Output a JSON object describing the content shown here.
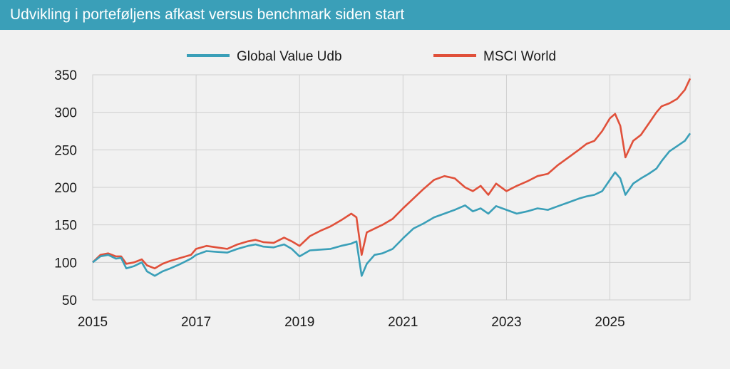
{
  "header": {
    "title": "Udvikling i porteføljens afkast versus benchmark siden start"
  },
  "colors": {
    "header_bg": "#3a9fb8",
    "fund": "#3a9fb8",
    "benchmark": "#e0503a",
    "grid": "#d0d0d0"
  },
  "chart_data": {
    "type": "line",
    "title": "Udvikling i porteføljens afkast versus benchmark siden start",
    "xlabel": "",
    "ylabel": "",
    "xlim": [
      2015.0,
      2026.55
    ],
    "ylim": [
      50,
      350
    ],
    "yticks": [
      50,
      100,
      150,
      200,
      250,
      300,
      350
    ],
    "xticks": [
      2015,
      2017,
      2019,
      2021,
      2023,
      2025
    ],
    "xtick_labels": [
      "2015",
      "2017",
      "2019",
      "2021",
      "2023",
      "2025"
    ],
    "ytick_labels": [
      "50",
      "100",
      "150",
      "200",
      "250",
      "300",
      "350"
    ],
    "grid": true,
    "legend_position": "top-center",
    "series": [
      {
        "name": "Global Value Udb",
        "color": "#3a9fb8",
        "x": [
          2015.0,
          2015.15,
          2015.3,
          2015.45,
          2015.55,
          2015.65,
          2015.8,
          2015.95,
          2016.05,
          2016.2,
          2016.35,
          2016.5,
          2016.7,
          2016.9,
          2017.0,
          2017.2,
          2017.4,
          2017.6,
          2017.8,
          2018.0,
          2018.15,
          2018.3,
          2018.5,
          2018.7,
          2018.85,
          2019.0,
          2019.2,
          2019.4,
          2019.6,
          2019.8,
          2020.0,
          2020.1,
          2020.2,
          2020.3,
          2020.45,
          2020.6,
          2020.8,
          2021.0,
          2021.2,
          2021.4,
          2021.6,
          2021.8,
          2022.0,
          2022.2,
          2022.35,
          2022.5,
          2022.65,
          2022.8,
          2023.0,
          2023.2,
          2023.4,
          2023.6,
          2023.8,
          2024.0,
          2024.2,
          2024.4,
          2024.55,
          2024.7,
          2024.85,
          2025.0,
          2025.1,
          2025.2,
          2025.3,
          2025.45,
          2025.6,
          2025.75,
          2025.9,
          2026.0,
          2026.15,
          2026.3,
          2026.45,
          2026.55
        ],
        "values": [
          100,
          108,
          110,
          105,
          106,
          92,
          95,
          100,
          88,
          82,
          88,
          92,
          98,
          105,
          110,
          115,
          114,
          113,
          118,
          122,
          124,
          121,
          120,
          124,
          118,
          108,
          116,
          117,
          118,
          122,
          125,
          128,
          82,
          98,
          110,
          112,
          118,
          132,
          145,
          152,
          160,
          165,
          170,
          176,
          168,
          172,
          165,
          175,
          170,
          165,
          168,
          172,
          170,
          175,
          180,
          185,
          188,
          190,
          195,
          210,
          220,
          212,
          190,
          205,
          212,
          218,
          225,
          235,
          248,
          255,
          262,
          272
        ]
      },
      {
        "name": "MSCI World",
        "color": "#e0503a",
        "x": [
          2015.0,
          2015.15,
          2015.3,
          2015.45,
          2015.55,
          2015.65,
          2015.8,
          2015.95,
          2016.05,
          2016.2,
          2016.35,
          2016.5,
          2016.7,
          2016.9,
          2017.0,
          2017.2,
          2017.4,
          2017.6,
          2017.8,
          2018.0,
          2018.15,
          2018.3,
          2018.5,
          2018.7,
          2018.85,
          2019.0,
          2019.2,
          2019.4,
          2019.6,
          2019.8,
          2020.0,
          2020.1,
          2020.2,
          2020.3,
          2020.45,
          2020.6,
          2020.8,
          2021.0,
          2021.2,
          2021.4,
          2021.6,
          2021.8,
          2022.0,
          2022.2,
          2022.35,
          2022.5,
          2022.65,
          2022.8,
          2023.0,
          2023.2,
          2023.4,
          2023.6,
          2023.8,
          2024.0,
          2024.2,
          2024.4,
          2024.55,
          2024.7,
          2024.85,
          2025.0,
          2025.1,
          2025.2,
          2025.3,
          2025.45,
          2025.6,
          2025.75,
          2025.9,
          2026.0,
          2026.15,
          2026.3,
          2026.45,
          2026.55
        ],
        "values": [
          100,
          110,
          112,
          108,
          108,
          98,
          100,
          104,
          96,
          92,
          98,
          102,
          106,
          110,
          118,
          122,
          120,
          118,
          124,
          128,
          130,
          127,
          126,
          133,
          128,
          122,
          135,
          142,
          148,
          156,
          165,
          160,
          110,
          140,
          145,
          150,
          158,
          172,
          185,
          198,
          210,
          215,
          212,
          200,
          195,
          202,
          190,
          205,
          195,
          202,
          208,
          215,
          218,
          230,
          240,
          250,
          258,
          262,
          275,
          292,
          298,
          282,
          240,
          262,
          270,
          285,
          300,
          308,
          312,
          318,
          330,
          345
        ]
      }
    ]
  }
}
